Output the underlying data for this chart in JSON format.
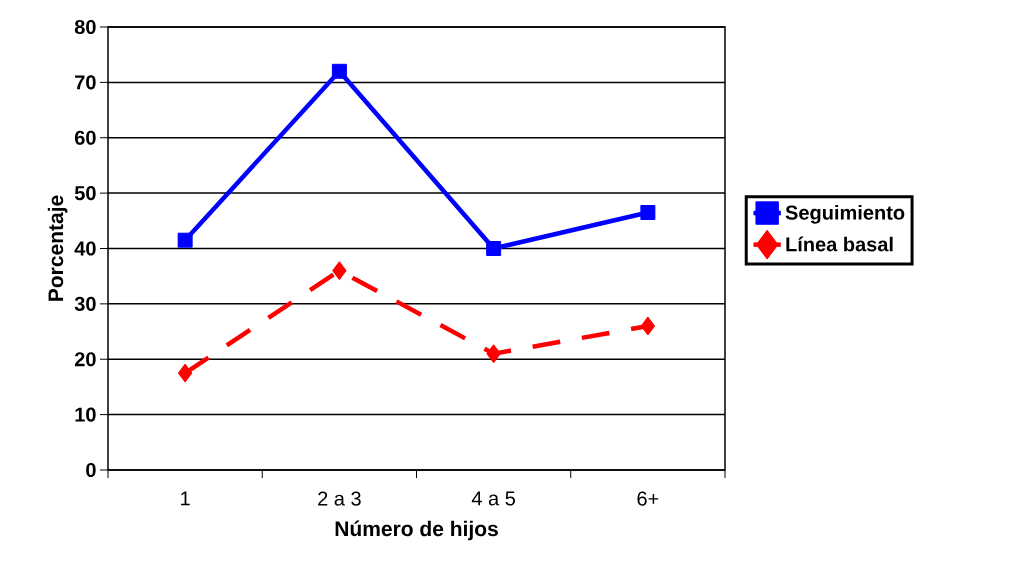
{
  "chart_data": {
    "type": "line",
    "xlabel": "Número de hijos",
    "ylabel": "Porcentaje",
    "categories": [
      "1",
      "2 a 3",
      "4 a 5",
      "6+"
    ],
    "series": [
      {
        "name": "Seguimiento",
        "color": "#0000ff",
        "values": [
          41.5,
          72,
          40,
          46.5
        ],
        "marker": "square",
        "line_style": "solid"
      },
      {
        "name": "Línea basal",
        "color": "#ff0000",
        "values": [
          17.5,
          36,
          21,
          26
        ],
        "marker": "diamond",
        "line_style": "dashed"
      }
    ],
    "ylim": [
      0,
      80
    ],
    "yticks": [
      0,
      10,
      20,
      30,
      40,
      50,
      60,
      70,
      80
    ],
    "grid": "y",
    "legend": "right"
  }
}
